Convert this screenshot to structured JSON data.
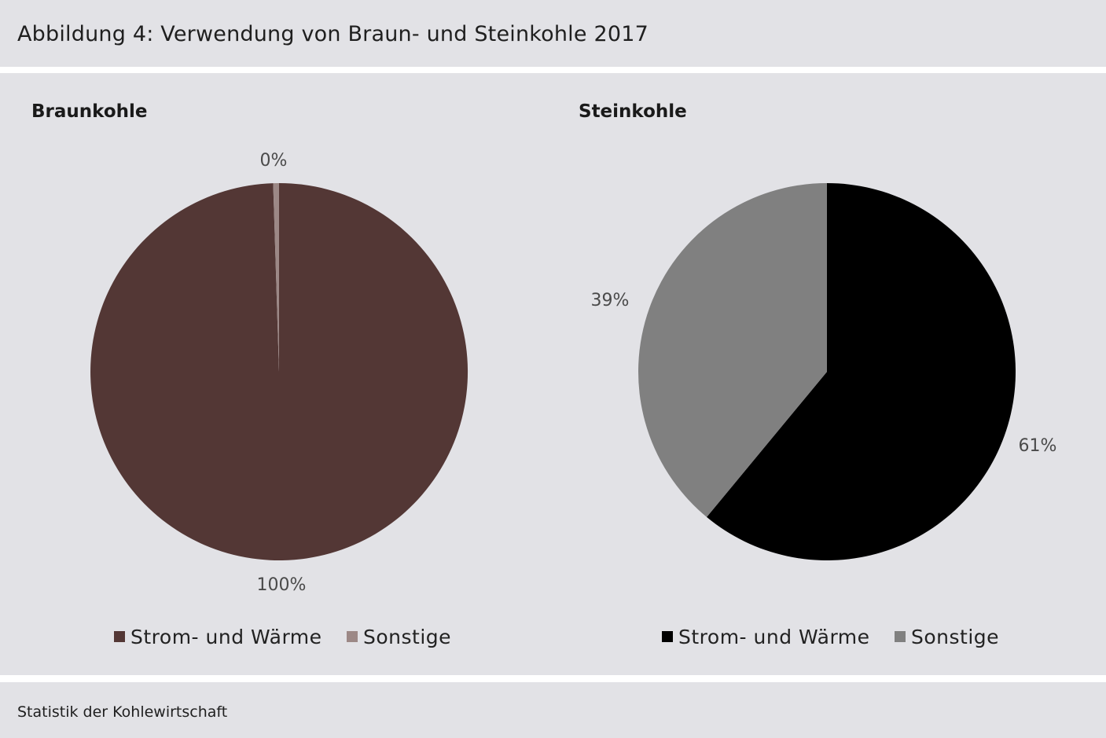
{
  "figure": {
    "title": "Abbildung 4: Verwendung von Braun- und Steinkohle 2017",
    "source": "Statistik der Kohlewirtschaft"
  },
  "chart_data": [
    {
      "type": "pie",
      "title": "Braunkohle",
      "slices": [
        {
          "name": "Strom- und Wärme",
          "value": 99.5,
          "label": "100%",
          "color": "#533735"
        },
        {
          "name": "Sonstige",
          "value": 0.5,
          "label": "0%",
          "color": "#9c8886"
        }
      ],
      "legend_position": "bottom"
    },
    {
      "type": "pie",
      "title": "Steinkohle",
      "slices": [
        {
          "name": "Strom- und Wärme",
          "value": 61,
          "label": "61%",
          "color": "#000000"
        },
        {
          "name": "Sonstige",
          "value": 39,
          "label": "39%",
          "color": "#808080"
        }
      ],
      "legend_position": "bottom"
    }
  ]
}
